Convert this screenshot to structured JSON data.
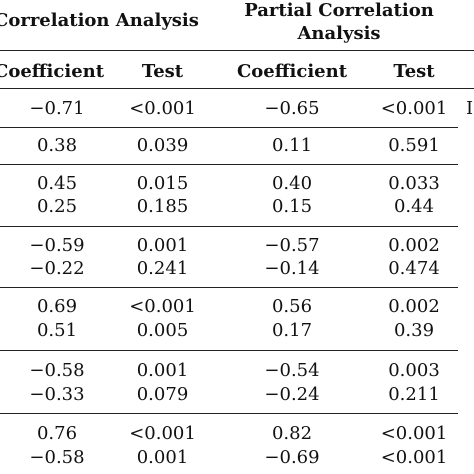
{
  "header": {
    "group_left": "Correlation Analysis",
    "group_right_line1": "Partial Correlation",
    "group_right_line2": "Analysis",
    "col_coefficient": "Coefficient",
    "col_test": "Test",
    "col_coefficient_2": "Coefficient",
    "col_test_2": "Test"
  },
  "rows": [
    {
      "c1": "−0.71",
      "c2": "<0.001",
      "c3": "−0.65",
      "c4": "<0.001"
    },
    {
      "c1": "0.38",
      "c2": "0.039",
      "c3": "0.11",
      "c4": "0.591"
    },
    {
      "c1": "0.45",
      "c2": "0.015",
      "c3": "0.40",
      "c4": "0.033"
    },
    {
      "c1": "0.25",
      "c2": "0.185",
      "c3": "0.15",
      "c4": "0.44"
    },
    {
      "c1": "−0.59",
      "c2": "0.001",
      "c3": "−0.57",
      "c4": "0.002"
    },
    {
      "c1": "−0.22",
      "c2": "0.241",
      "c3": "−0.14",
      "c4": "0.474"
    },
    {
      "c1": "0.69",
      "c2": "<0.001",
      "c3": "0.56",
      "c4": "0.002"
    },
    {
      "c1": "0.51",
      "c2": "0.005",
      "c3": "0.17",
      "c4": "0.39"
    },
    {
      "c1": "−0.58",
      "c2": "0.001",
      "c3": "−0.54",
      "c4": "0.003"
    },
    {
      "c1": "−0.33",
      "c2": "0.079",
      "c3": "−0.24",
      "c4": "0.211"
    },
    {
      "c1": "0.76",
      "c2": "<0.001",
      "c3": "0.82",
      "c4": "<0.001"
    },
    {
      "c1": "−0.58",
      "c2": "0.001",
      "c3": "−0.69",
      "c4": "<0.001"
    }
  ],
  "edge_glyph": "I"
}
